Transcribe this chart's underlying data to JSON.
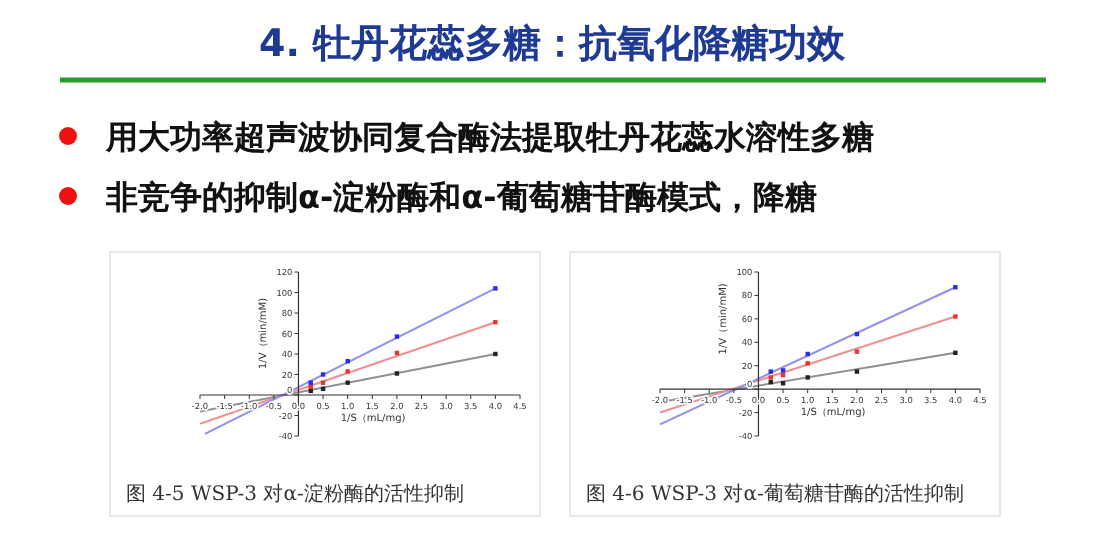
{
  "chart_data": [
    {
      "type": "other",
      "title": "4. 牡丹花蕊多糖：抗氧化降糖功效",
      "annotations": [
        "用大功率超声波协同复合酶法提取牡丹花蕊水溶性多糖",
        "非竞争的抑制α-淀粉酶和α-葡萄糖苷酶模式，降糖"
      ]
    },
    {
      "type": "scatter",
      "xlabel": "1/S（mL/mg)",
      "ylabel": "1/V（min/mM)",
      "marker": "square",
      "xlim": [
        -2.0,
        4.5
      ],
      "ylim": [
        -40,
        120
      ],
      "xticks": [
        {
          "value": -2,
          "label": "-2.0"
        },
        -1.5,
        {
          "value": -1,
          "label": "-1.0"
        },
        -0.5,
        {
          "value": 0,
          "label": "0.0"
        },
        0.5,
        {
          "value": 1,
          "label": "1.0"
        },
        1.5,
        {
          "value": 2,
          "label": "2.0"
        },
        2.5,
        {
          "value": 3,
          "label": "3.0"
        },
        3.5,
        {
          "value": 4,
          "label": "4.0"
        },
        4.5
      ],
      "yticks": [
        -40,
        -20,
        0,
        20,
        40,
        60,
        80,
        100,
        120
      ],
      "annotations": [
        "图 4-5 WSP-3 对α-淀粉酶的活性抑制"
      ],
      "series": [
        {
          "color": "#222222",
          "x": [
            0.25,
            0.5,
            1,
            2,
            4
          ],
          "values": [
            4,
            6,
            12,
            21,
            40
          ]
        },
        {
          "color": "#e8332f",
          "x": [
            0.25,
            0.5,
            1,
            2,
            4
          ],
          "values": [
            8,
            12,
            23,
            41,
            71
          ]
        },
        {
          "color": "#2a2af0",
          "x": [
            0.25,
            0.5,
            1,
            2,
            4
          ],
          "values": [
            12,
            20,
            33,
            57,
            104
          ]
        },
        {
          "type": "line",
          "marker": "none",
          "color": "#909090",
          "x": [
            -2,
            4
          ],
          "values": [
            -16,
            40
          ]
        },
        {
          "type": "line",
          "marker": "none",
          "color": "#f09090",
          "x": [
            -2,
            4
          ],
          "values": [
            -28,
            71
          ]
        },
        {
          "type": "line",
          "marker": "none",
          "color": "#9090f0",
          "x": [
            -1.9,
            4
          ],
          "values": [
            -38,
            104
          ]
        }
      ]
    },
    {
      "type": "scatter",
      "xlabel": "1/S（mL/mg)",
      "ylabel": "1/V（min/mM)",
      "marker": "square",
      "xlim": [
        -2.0,
        4.5
      ],
      "ylim": [
        -40,
        100
      ],
      "xticks": [
        {
          "value": -2,
          "label": "-2.0"
        },
        -1.5,
        {
          "value": -1,
          "label": "-1.0"
        },
        -0.5,
        {
          "value": 0,
          "label": "0.0"
        },
        0.5,
        {
          "value": 1,
          "label": "1.0"
        },
        1.5,
        {
          "value": 2,
          "label": "2.0"
        },
        2.5,
        {
          "value": 3,
          "label": "3.0"
        },
        3.5,
        {
          "value": 4,
          "label": "4.0"
        },
        4.5
      ],
      "yticks": [
        -40,
        -20,
        0,
        20,
        40,
        60,
        80,
        100
      ],
      "annotations": [
        "图 4-6 WSP-3 对α-葡萄糖苷酶的活性抑制"
      ],
      "series": [
        {
          "color": "#222222",
          "x": [
            0.25,
            0.5,
            1,
            2,
            4
          ],
          "values": [
            6,
            5,
            10,
            15,
            31
          ]
        },
        {
          "color": "#e8332f",
          "x": [
            0.25,
            0.5,
            1,
            2,
            4
          ],
          "values": [
            10,
            12,
            22,
            32,
            62
          ]
        },
        {
          "color": "#2a2af0",
          "x": [
            0.25,
            0.5,
            1,
            2,
            4
          ],
          "values": [
            15,
            16,
            30,
            47,
            87
          ]
        },
        {
          "type": "line",
          "marker": "none",
          "color": "#909090",
          "x": [
            -2,
            4
          ],
          "values": [
            -11,
            31
          ]
        },
        {
          "type": "line",
          "marker": "none",
          "color": "#f09090",
          "x": [
            -2,
            4
          ],
          "values": [
            -20,
            62
          ]
        },
        {
          "type": "line",
          "marker": "none",
          "color": "#9090f0",
          "x": [
            -2,
            4
          ],
          "values": [
            -30,
            87
          ]
        }
      ]
    }
  ]
}
